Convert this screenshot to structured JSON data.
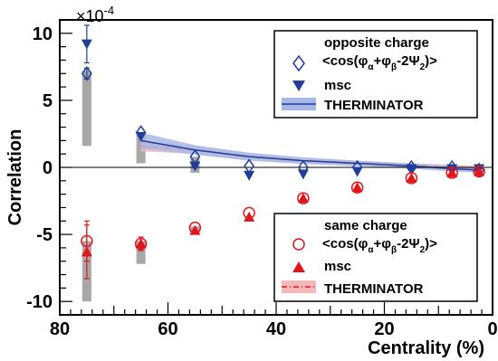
{
  "chart_data": {
    "type": "scatter",
    "xlabel": "Centrality (%)",
    "ylabel": "Correlation",
    "exponent_label": "×10",
    "exponent_power": "-4",
    "xlim": [
      80,
      0
    ],
    "ylim": [
      -11,
      11
    ],
    "x_ticks": [
      80,
      60,
      40,
      20,
      0
    ],
    "y_ticks": [
      10,
      5,
      0,
      -5,
      -10
    ],
    "zero_line": true,
    "colors": {
      "opposite": "#1f3d99",
      "opposite_band": "#a8b8e6",
      "same": "#e0161b",
      "same_band": "#f4b8b8",
      "syst": "#a8a8a8"
    },
    "legend_opposite": {
      "title": "opposite charge",
      "expr_parts": [
        "<cos(φ",
        "α",
        "+φ",
        "β",
        "-2Ψ",
        "2",
        ")>"
      ],
      "msc": "msc",
      "therminator": "THERMINATOR"
    },
    "legend_same": {
      "title": "same charge",
      "expr_parts": [
        "<cos(φ",
        "α",
        "+φ",
        "β",
        "-2Ψ",
        "2",
        ")>"
      ],
      "msc": "msc",
      "therminator": "THERMINATOR"
    },
    "series": [
      {
        "name": "opposite charge",
        "marker": "diamond-open",
        "color": "#1f3d99",
        "x": [
          75,
          65,
          55,
          45,
          35,
          25,
          15,
          7.5,
          2.5
        ],
        "y": [
          7.0,
          2.6,
          0.8,
          0.1,
          0.0,
          0.0,
          0.0,
          0.0,
          -0.2
        ],
        "err": [
          0.4,
          0.3,
          0.2,
          0.2,
          0.2,
          0.2,
          0.2,
          0.2,
          0.2
        ]
      },
      {
        "name": "msc opposite",
        "marker": "triangle-down",
        "color": "#1f3d99",
        "x": [
          75,
          65,
          55,
          45,
          35,
          25,
          15,
          7.5,
          2.5
        ],
        "y": [
          9.2,
          2.3,
          0.1,
          -0.6,
          -0.5,
          -0.3,
          -0.1,
          -0.1,
          -0.1
        ],
        "err": [
          1.4,
          0.3,
          0.2,
          0.2,
          0.2,
          0.2,
          0.2,
          0.2,
          0.2
        ]
      },
      {
        "name": "same charge",
        "marker": "circle-open",
        "color": "#e0161b",
        "x": [
          75,
          65,
          55,
          45,
          35,
          25,
          15,
          7.5,
          2.5
        ],
        "y": [
          -5.5,
          -5.7,
          -4.5,
          -3.4,
          -2.3,
          -1.5,
          -0.8,
          -0.4,
          -0.3
        ],
        "err": [
          1.5,
          0.5,
          0.3,
          0.2,
          0.2,
          0.2,
          0.2,
          0.2,
          0.2
        ]
      },
      {
        "name": "msc same",
        "marker": "triangle-up",
        "color": "#e0161b",
        "x": [
          75,
          65,
          55,
          45,
          35,
          25,
          15,
          7.5,
          2.5
        ],
        "y": [
          -6.3,
          -5.7,
          -4.7,
          -3.7,
          -2.3,
          -1.5,
          -0.8,
          -0.4,
          -0.3
        ],
        "err": [
          2.0,
          0.5,
          0.3,
          0.2,
          0.2,
          0.2,
          0.2,
          0.2,
          0.2
        ]
      }
    ],
    "systematics_opposite": [
      {
        "x": 75,
        "low": 1.6,
        "high": 7.2
      },
      {
        "x": 65,
        "low": 0.3,
        "high": 2.6
      },
      {
        "x": 55,
        "low": -0.4,
        "high": 0.8
      }
    ],
    "systematics_same": [
      {
        "x": 75,
        "low": -10.0,
        "high": -5.5
      },
      {
        "x": 65,
        "low": -7.2,
        "high": -5.5
      },
      {
        "x": 55,
        "low": -5.0,
        "high": -4.4
      }
    ],
    "therminator_opposite": {
      "x": [
        65,
        55,
        45,
        35,
        25,
        15,
        7.5,
        2.5
      ],
      "y": [
        2.0,
        1.3,
        0.8,
        0.5,
        0.3,
        0.1,
        -0.1,
        -0.2
      ],
      "band": [
        0.6,
        0.35,
        0.3,
        0.25,
        0.2,
        0.2,
        0.2,
        0.2
      ]
    },
    "therminator_same": {
      "x": [
        65,
        55,
        45,
        35,
        25,
        15,
        7.5,
        2.5
      ],
      "y": [
        1.6,
        1.3,
        0.8,
        0.5,
        0.3,
        0.15,
        0.05,
        -0.05
      ],
      "band": [
        0.4,
        0.3,
        0.25,
        0.2,
        0.2,
        0.15,
        0.15,
        0.15
      ]
    }
  }
}
